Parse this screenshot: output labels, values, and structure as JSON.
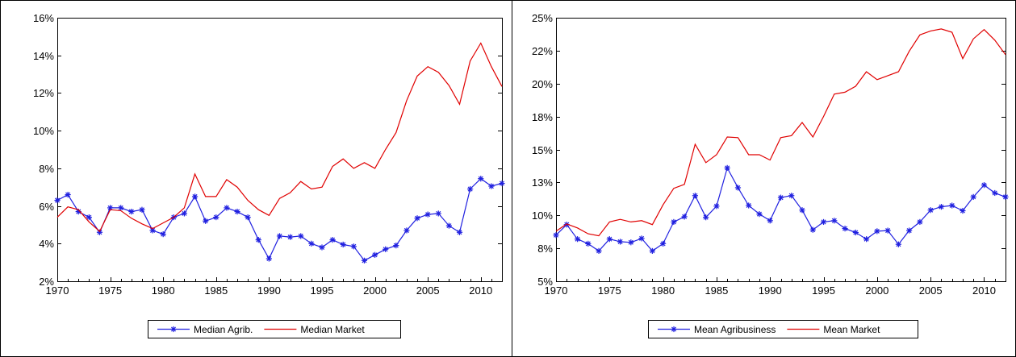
{
  "colors": {
    "agri": "#2020e0",
    "market": "#e00000",
    "frame": "#000000",
    "background": "#ffffff"
  },
  "chart_data": [
    {
      "type": "line",
      "title": "",
      "xlabel": "",
      "ylabel": "",
      "xlim": [
        1970,
        2012
      ],
      "ylim": [
        2,
        16
      ],
      "x_ticks": [
        1970,
        1975,
        1980,
        1985,
        1990,
        1995,
        2000,
        2005,
        2010
      ],
      "x_tick_labels": [
        "1970",
        "1975",
        "1980",
        "1985",
        "1990",
        "1995",
        "2000",
        "2005",
        "2010"
      ],
      "y_ticks": [
        2,
        4,
        6,
        8,
        10,
        12,
        14,
        16
      ],
      "y_tick_labels": [
        "2%",
        "4%",
        "6%",
        "8%",
        "10%",
        "12%",
        "14%",
        "16%"
      ],
      "grid": false,
      "legend_position": "bottom-center",
      "x": [
        1970,
        1971,
        1972,
        1973,
        1974,
        1975,
        1976,
        1977,
        1978,
        1979,
        1980,
        1981,
        1982,
        1983,
        1984,
        1985,
        1986,
        1987,
        1988,
        1989,
        1990,
        1991,
        1992,
        1993,
        1994,
        1995,
        1996,
        1997,
        1998,
        1999,
        2000,
        2001,
        2002,
        2003,
        2004,
        2005,
        2006,
        2007,
        2008,
        2009,
        2010,
        2011,
        2012
      ],
      "series": [
        {
          "name": "Median Agrib.",
          "marker": "asterisk",
          "values": [
            6.3,
            6.6,
            5.7,
            5.4,
            4.6,
            5.9,
            5.9,
            5.7,
            5.8,
            4.7,
            4.5,
            5.4,
            5.6,
            6.5,
            5.2,
            5.4,
            5.9,
            5.7,
            5.4,
            4.2,
            3.2,
            4.4,
            4.35,
            4.4,
            4.0,
            3.8,
            4.2,
            3.95,
            3.85,
            3.1,
            3.4,
            3.7,
            3.9,
            4.7,
            5.35,
            5.55,
            5.6,
            4.95,
            4.6,
            6.9,
            7.45,
            7.05,
            7.2
          ]
        },
        {
          "name": "Median Market",
          "marker": "none",
          "values": [
            5.4,
            5.95,
            5.8,
            5.15,
            4.65,
            5.8,
            5.75,
            5.35,
            5.05,
            4.8,
            5.1,
            5.4,
            5.9,
            7.7,
            6.5,
            6.5,
            7.4,
            7.0,
            6.3,
            5.8,
            5.5,
            6.4,
            6.7,
            7.3,
            6.9,
            7.0,
            8.1,
            8.5,
            8.0,
            8.3,
            8.0,
            9.0,
            9.9,
            11.6,
            12.9,
            13.4,
            13.1,
            12.4,
            11.4,
            13.7,
            14.65,
            13.4,
            12.35
          ]
        }
      ]
    },
    {
      "type": "line",
      "title": "",
      "xlabel": "",
      "ylabel": "",
      "xlim": [
        1970,
        2012
      ],
      "ylim": [
        5,
        25
      ],
      "x_ticks": [
        1970,
        1975,
        1980,
        1985,
        1990,
        1995,
        2000,
        2005,
        2010
      ],
      "x_tick_labels": [
        "1970",
        "1975",
        "1980",
        "1985",
        "1990",
        "1995",
        "2000",
        "2005",
        "2010"
      ],
      "y_ticks": [
        5,
        7.5,
        10,
        12.5,
        15,
        17.5,
        20,
        22.5,
        25
      ],
      "y_tick_labels": [
        "5%",
        "8%",
        "10%",
        "13%",
        "15%",
        "18%",
        "20%",
        "22%",
        "25%"
      ],
      "grid": false,
      "legend_position": "bottom-center",
      "x": [
        1970,
        1971,
        1972,
        1973,
        1974,
        1975,
        1976,
        1977,
        1978,
        1979,
        1980,
        1981,
        1982,
        1983,
        1984,
        1985,
        1986,
        1987,
        1988,
        1989,
        1990,
        1991,
        1992,
        1993,
        1994,
        1995,
        1996,
        1997,
        1998,
        1999,
        2000,
        2001,
        2002,
        2003,
        2004,
        2005,
        2006,
        2007,
        2008,
        2009,
        2010,
        2011,
        2012
      ],
      "series": [
        {
          "name": "Mean Agribusiness",
          "marker": "asterisk",
          "values": [
            8.5,
            9.3,
            8.2,
            7.85,
            7.3,
            8.2,
            8.0,
            7.95,
            8.25,
            7.3,
            7.85,
            9.5,
            9.9,
            11.5,
            9.85,
            10.7,
            13.6,
            12.1,
            10.75,
            10.1,
            9.6,
            11.35,
            11.5,
            10.4,
            8.9,
            9.5,
            9.6,
            9.0,
            8.7,
            8.2,
            8.8,
            8.85,
            7.8,
            8.85,
            9.5,
            10.4,
            10.65,
            10.75,
            10.35,
            11.4,
            12.3,
            11.7,
            11.4
          ]
        },
        {
          "name": "Mean Market",
          "marker": "none",
          "values": [
            8.8,
            9.35,
            9.05,
            8.6,
            8.45,
            9.5,
            9.7,
            9.5,
            9.6,
            9.3,
            10.8,
            12.05,
            12.35,
            15.4,
            14.0,
            14.6,
            15.95,
            15.9,
            14.6,
            14.6,
            14.2,
            15.9,
            16.05,
            17.05,
            15.95,
            17.5,
            19.2,
            19.35,
            19.8,
            20.9,
            20.3,
            20.6,
            20.9,
            22.45,
            23.7,
            24.0,
            24.15,
            23.9,
            21.9,
            23.4,
            24.1,
            23.3,
            22.2
          ]
        }
      ]
    }
  ]
}
